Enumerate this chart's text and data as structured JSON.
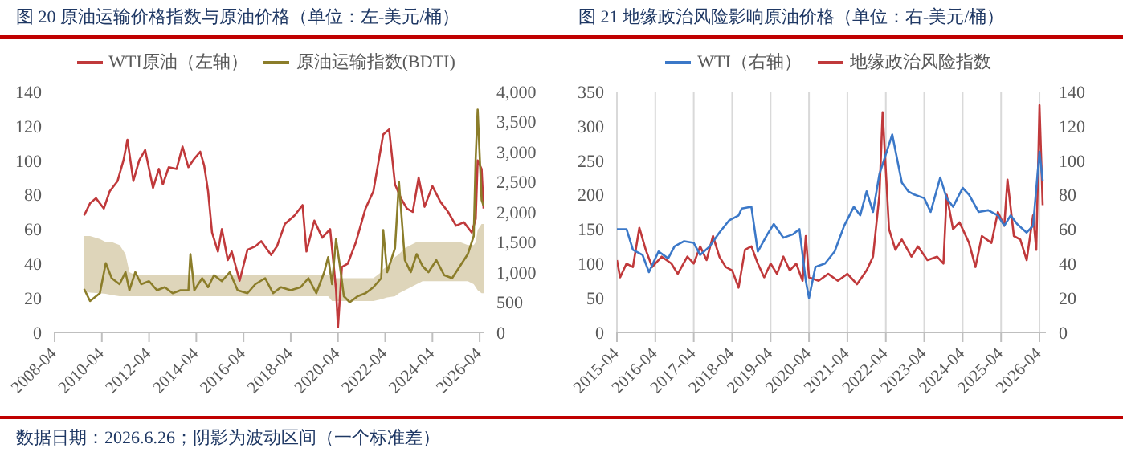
{
  "chart_data": [
    {
      "type": "line",
      "title": "图 20 原油运输价格指数与原油价格（单位：左-美元/桶）",
      "legend": "top",
      "grid": false,
      "xlim": [
        "2008-04",
        "2026-06"
      ],
      "xticks": [
        "2008-04",
        "2010-04",
        "2012-04",
        "2014-04",
        "2016-04",
        "2018-04",
        "2020-04",
        "2022-04",
        "2024-04",
        "2026-04"
      ],
      "ylim": [
        0,
        140
      ],
      "yticks": [
        0,
        20,
        40,
        60,
        80,
        100,
        120,
        140
      ],
      "y2lim": [
        0,
        4000
      ],
      "y2ticks": [
        0,
        500,
        {
          "value": 1000,
          "label": "1,000"
        },
        {
          "value": 1500,
          "label": "1,500"
        },
        {
          "value": 2000,
          "label": "2,000"
        },
        {
          "value": 2500,
          "label": "2,500"
        },
        {
          "value": 3000,
          "label": "3,000"
        },
        {
          "value": 3500,
          "label": "3,500"
        },
        {
          "value": 4000,
          "label": "4,000"
        }
      ],
      "annotations": [
        "数据日期：2026.6.26；阴影为波动区间（一个标准差）"
      ],
      "series": [
        {
          "name": "WTI原油（左轴）",
          "color": "#c0393b",
          "x": [
            "2009-07",
            "2009-10",
            "2010-01",
            "2010-05",
            "2010-08",
            "2010-12",
            "2011-03",
            "2011-05",
            "2011-08",
            "2011-11",
            "2012-02",
            "2012-06",
            "2012-09",
            "2012-11",
            "2013-02",
            "2013-06",
            "2013-09",
            "2013-12",
            "2014-03",
            "2014-06",
            "2014-08",
            "2014-10",
            "2014-12",
            "2015-03",
            "2015-05",
            "2015-08",
            "2015-10",
            "2016-02",
            "2016-06",
            "2016-10",
            "2017-01",
            "2017-06",
            "2017-09",
            "2018-01",
            "2018-06",
            "2018-10",
            "2018-12",
            "2019-04",
            "2019-08",
            "2019-12",
            "2020-03",
            "2020-04",
            "2020-06",
            "2020-09",
            "2021-01",
            "2021-06",
            "2021-10",
            "2022-03",
            "2022-06",
            "2022-09",
            "2022-12",
            "2023-03",
            "2023-06",
            "2023-09",
            "2023-12",
            "2024-04",
            "2024-08",
            "2024-12",
            "2025-04",
            "2025-08",
            "2025-12",
            "2026-02",
            "2026-03",
            "2026-05",
            "2026-06"
          ],
          "values": [
            68,
            75,
            78,
            72,
            82,
            88,
            100,
            112,
            88,
            100,
            106,
            84,
            95,
            86,
            96,
            95,
            108,
            96,
            101,
            105,
            97,
            82,
            58,
            47,
            60,
            42,
            47,
            30,
            48,
            50,
            53,
            45,
            50,
            63,
            68,
            74,
            47,
            65,
            55,
            60,
            25,
            3,
            38,
            40,
            52,
            72,
            82,
            115,
            118,
            86,
            78,
            72,
            70,
            90,
            73,
            85,
            76,
            70,
            62,
            64,
            58,
            66,
            100,
            95,
            72
          ]
        },
        {
          "name": "原油运输指数(BDTI)",
          "color": "#8b7d2a",
          "axis": "y2",
          "x": [
            "2009-07",
            "2009-10",
            "2010-03",
            "2010-06",
            "2010-09",
            "2011-01",
            "2011-04",
            "2011-06",
            "2011-09",
            "2011-12",
            "2012-04",
            "2012-08",
            "2012-12",
            "2013-04",
            "2013-08",
            "2013-12",
            "2014-01",
            "2014-03",
            "2014-07",
            "2014-10",
            "2015-01",
            "2015-05",
            "2015-09",
            "2016-01",
            "2016-06",
            "2016-10",
            "2017-03",
            "2017-07",
            "2017-11",
            "2018-04",
            "2018-09",
            "2019-01",
            "2019-05",
            "2019-09",
            "2019-11",
            "2020-01",
            "2020-03",
            "2020-05",
            "2020-07",
            "2020-10",
            "2021-02",
            "2021-06",
            "2021-10",
            "2022-02",
            "2022-03",
            "2022-05",
            "2022-09",
            "2022-11",
            "2023-02",
            "2023-05",
            "2023-08",
            "2023-11",
            "2024-02",
            "2024-06",
            "2024-10",
            "2025-02",
            "2025-06",
            "2025-10",
            "2026-01",
            "2026-02",
            "2026-03",
            "2026-05",
            "2026-06"
          ],
          "values": [
            720,
            520,
            650,
            1150,
            900,
            800,
            1000,
            700,
            1000,
            800,
            850,
            700,
            750,
            650,
            700,
            700,
            1300,
            700,
            900,
            750,
            950,
            850,
            1000,
            700,
            650,
            800,
            900,
            650,
            750,
            700,
            750,
            900,
            650,
            1000,
            1250,
            800,
            1550,
            1100,
            600,
            500,
            600,
            650,
            750,
            900,
            1700,
            1000,
            1400,
            2500,
            1200,
            1000,
            1300,
            1100,
            1000,
            1200,
            950,
            900,
            1100,
            1300,
            1600,
            2900,
            3700,
            2200,
            2100
          ],
          "upper": [
            1600,
            1600,
            1550,
            1500,
            1500,
            1450,
            1300,
            1000,
            950,
            950,
            950,
            950,
            950,
            950,
            950,
            950,
            950,
            950,
            950,
            950,
            950,
            950,
            950,
            950,
            950,
            950,
            950,
            950,
            950,
            950,
            950,
            950,
            950,
            950,
            950,
            900,
            900,
            900,
            900,
            900,
            900,
            900,
            900,
            1000,
            1050,
            1100,
            1250,
            1300,
            1400,
            1450,
            1500,
            1500,
            1500,
            1500,
            1500,
            1500,
            1500,
            1450,
            1450,
            1500,
            1700,
            1800,
            1800
          ],
          "lower": [
            680,
            660,
            650,
            640,
            620,
            600,
            600,
            600,
            600,
            600,
            600,
            600,
            600,
            600,
            600,
            600,
            600,
            600,
            600,
            600,
            600,
            600,
            600,
            600,
            600,
            600,
            600,
            600,
            600,
            600,
            600,
            600,
            600,
            600,
            600,
            520,
            520,
            520,
            520,
            520,
            520,
            520,
            520,
            550,
            560,
            580,
            600,
            650,
            700,
            750,
            800,
            850,
            850,
            850,
            850,
            850,
            850,
            850,
            800,
            750,
            700,
            650,
            650
          ]
        }
      ]
    },
    {
      "type": "line",
      "title": "图 21 地缘政治风险影响原油价格（单位：右-美元/桶）",
      "legend": "top",
      "grid": "x",
      "xlim": [
        "2015-04",
        "2026-06"
      ],
      "xticks": [
        "2015-04",
        "2016-04",
        "2017-04",
        "2018-04",
        "2019-04",
        "2020-04",
        "2021-04",
        "2022-04",
        "2023-04",
        "2024-04",
        "2025-04",
        "2026-04"
      ],
      "ylim": [
        0,
        350
      ],
      "yticks": [
        0,
        50,
        100,
        150,
        200,
        250,
        300,
        350
      ],
      "y2lim": [
        0,
        140
      ],
      "y2ticks": [
        0,
        20,
        40,
        60,
        80,
        100,
        120,
        140
      ],
      "series": [
        {
          "name": "地缘政治风险指数",
          "color": "#c0393b",
          "x": [
            "2015-04",
            "2015-05",
            "2015-07",
            "2015-09",
            "2015-11",
            "2016-01",
            "2016-03",
            "2016-06",
            "2016-09",
            "2016-11",
            "2017-02",
            "2017-04",
            "2017-06",
            "2017-08",
            "2017-10",
            "2017-12",
            "2018-02",
            "2018-04",
            "2018-06",
            "2018-08",
            "2018-10",
            "2018-12",
            "2019-02",
            "2019-04",
            "2019-06",
            "2019-08",
            "2019-10",
            "2019-12",
            "2020-02",
            "2020-03",
            "2020-04",
            "2020-07",
            "2020-10",
            "2021-01",
            "2021-04",
            "2021-07",
            "2021-10",
            "2021-12",
            "2022-02",
            "2022-03",
            "2022-05",
            "2022-07",
            "2022-09",
            "2022-12",
            "2023-02",
            "2023-05",
            "2023-08",
            "2023-10",
            "2023-11",
            "2024-01",
            "2024-03",
            "2024-06",
            "2024-08",
            "2024-10",
            "2025-01",
            "2025-03",
            "2025-05",
            "2025-06",
            "2025-08",
            "2025-10",
            "2025-12",
            "2026-02",
            "2026-03",
            "2026-04",
            "2026-05"
          ],
          "values": [
            105,
            80,
            100,
            95,
            152,
            120,
            95,
            110,
            100,
            85,
            110,
            100,
            125,
            105,
            140,
            110,
            95,
            90,
            65,
            120,
            125,
            100,
            80,
            100,
            85,
            110,
            90,
            100,
            75,
            140,
            80,
            75,
            85,
            75,
            85,
            70,
            90,
            110,
            200,
            320,
            150,
            120,
            135,
            110,
            125,
            105,
            110,
            100,
            200,
            150,
            160,
            130,
            95,
            140,
            130,
            175,
            155,
            222,
            140,
            135,
            105,
            170,
            120,
            330,
            185
          ]
        },
        {
          "name": "WTI（右轴）",
          "color": "#3b78c8",
          "axis": "y2",
          "x": [
            "2015-04",
            "2015-07",
            "2015-09",
            "2015-12",
            "2016-02",
            "2016-05",
            "2016-08",
            "2016-10",
            "2017-01",
            "2017-04",
            "2017-06",
            "2017-09",
            "2017-12",
            "2018-03",
            "2018-06",
            "2018-07",
            "2018-10",
            "2018-12",
            "2019-03",
            "2019-05",
            "2019-08",
            "2019-11",
            "2020-01",
            "2020-03",
            "2020-04",
            "2020-06",
            "2020-09",
            "2020-12",
            "2021-03",
            "2021-06",
            "2021-08",
            "2021-10",
            "2021-12",
            "2022-02",
            "2022-06",
            "2022-09",
            "2022-11",
            "2023-01",
            "2023-04",
            "2023-06",
            "2023-09",
            "2023-11",
            "2024-01",
            "2024-04",
            "2024-06",
            "2024-09",
            "2024-12",
            "2025-03",
            "2025-05",
            "2025-07",
            "2025-09",
            "2025-12",
            "2026-02",
            "2026-04",
            "2026-05"
          ],
          "values": [
            60,
            60,
            48,
            45,
            35,
            47,
            43,
            50,
            53,
            52,
            45,
            50,
            58,
            65,
            68,
            72,
            73,
            47,
            57,
            63,
            55,
            57,
            60,
            30,
            20,
            38,
            40,
            47,
            62,
            73,
            68,
            82,
            70,
            92,
            115,
            87,
            82,
            80,
            78,
            70,
            90,
            78,
            73,
            84,
            80,
            70,
            71,
            68,
            62,
            68,
            63,
            58,
            62,
            105,
            88
          ]
        }
      ]
    }
  ]
}
